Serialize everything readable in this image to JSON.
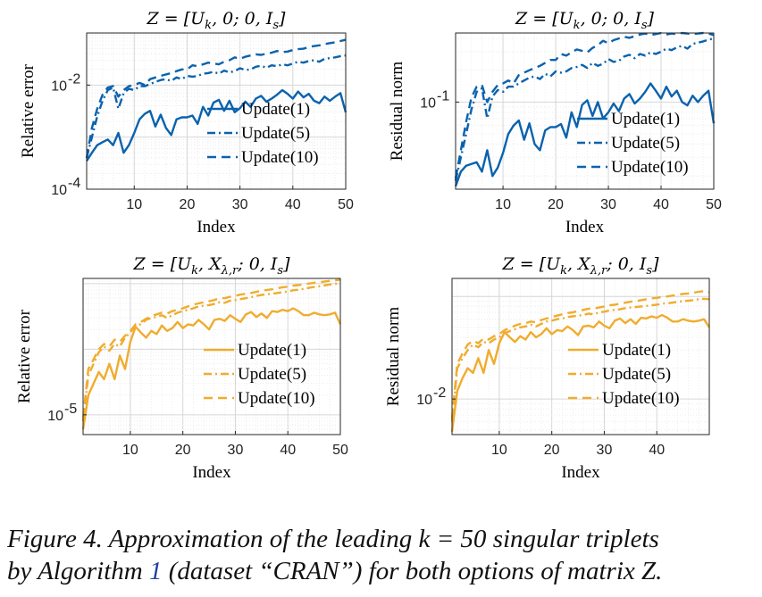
{
  "colors": {
    "blue": "#0a62ad",
    "orange": "#f0ac2e"
  },
  "caption": {
    "label": "Figure 4.",
    "line1_pre": "Approximation of the leading ",
    "k_equals": "k = 50",
    "line1_post": " singular triplets",
    "line2_pre": "by Algorithm ",
    "ref": "1",
    "line2_mid": " (dataset “CRAN”) for both options of matrix ",
    "matrix": "Z",
    "line2_end": "."
  },
  "chart_data": [
    {
      "type": "line",
      "title": "Z = [U_k, 0; 0, I_s]",
      "xlabel": "Index",
      "ylabel": "Relative error",
      "ylog": true,
      "xlim": [
        1,
        50
      ],
      "ylim": [
        0.0001,
        0.1
      ],
      "xticks": [
        10,
        20,
        30,
        40,
        50
      ],
      "yticks": [
        0.0001,
        0.01
      ],
      "ytick_labels": [
        {
          "base": "10",
          "exp": "-4"
        },
        {
          "base": "10",
          "exp": "-2"
        }
      ],
      "grid": true,
      "color": "blue",
      "legend_position": "bottom-right",
      "x": [
        1,
        2,
        3,
        4,
        5,
        6,
        7,
        8,
        9,
        10,
        11,
        12,
        13,
        14,
        15,
        16,
        17,
        18,
        19,
        20,
        21,
        22,
        23,
        24,
        25,
        26,
        27,
        28,
        29,
        30,
        31,
        32,
        33,
        34,
        35,
        36,
        37,
        38,
        39,
        40,
        41,
        42,
        43,
        44,
        45,
        46,
        47,
        48,
        49,
        50
      ],
      "series": [
        {
          "name": "Update(1)",
          "dash": "solid",
          "values": [
            0.00035,
            0.0005,
            0.0007,
            0.0008,
            0.0009,
            0.0007,
            0.0012,
            0.0005,
            0.0007,
            0.0012,
            0.0022,
            0.0028,
            0.0032,
            0.0016,
            0.0027,
            0.0015,
            0.0011,
            0.0022,
            0.0024,
            0.0024,
            0.0026,
            0.0018,
            0.0038,
            0.0026,
            0.0046,
            0.0052,
            0.0032,
            0.005,
            0.003,
            0.0036,
            0.0048,
            0.0038,
            0.0055,
            0.0062,
            0.0048,
            0.0055,
            0.0065,
            0.008,
            0.0068,
            0.0055,
            0.0075,
            0.0058,
            0.0068,
            0.005,
            0.0045,
            0.006,
            0.005,
            0.006,
            0.007,
            0.003
          ]
        },
        {
          "name": "Update(5)",
          "dash": "dashdot",
          "values": [
            0.0004,
            0.001,
            0.0025,
            0.005,
            0.008,
            0.009,
            0.0035,
            0.007,
            0.0085,
            0.008,
            0.0095,
            0.0095,
            0.0105,
            0.0115,
            0.0125,
            0.013,
            0.012,
            0.014,
            0.013,
            0.015,
            0.0145,
            0.015,
            0.0165,
            0.017,
            0.018,
            0.0165,
            0.019,
            0.0175,
            0.0185,
            0.021,
            0.0195,
            0.02,
            0.0225,
            0.0235,
            0.0215,
            0.024,
            0.023,
            0.025,
            0.024,
            0.026,
            0.028,
            0.027,
            0.029,
            0.03,
            0.028,
            0.032,
            0.033,
            0.034,
            0.036,
            0.037
          ]
        },
        {
          "name": "Update(10)",
          "dash": "dash",
          "values": [
            0.0004,
            0.0015,
            0.0035,
            0.0065,
            0.009,
            0.0095,
            0.006,
            0.008,
            0.0095,
            0.01,
            0.011,
            0.01,
            0.013,
            0.014,
            0.015,
            0.016,
            0.017,
            0.0185,
            0.02,
            0.02,
            0.024,
            0.023,
            0.025,
            0.027,
            0.026,
            0.025,
            0.028,
            0.03,
            0.034,
            0.032,
            0.035,
            0.037,
            0.039,
            0.038,
            0.04,
            0.042,
            0.045,
            0.043,
            0.044,
            0.047,
            0.049,
            0.05,
            0.054,
            0.056,
            0.058,
            0.061,
            0.064,
            0.066,
            0.07,
            0.074
          ]
        }
      ]
    },
    {
      "type": "line",
      "title": "Z = [U_k, 0; 0, I_s]",
      "xlabel": "Index",
      "ylabel": "Residual norm",
      "ylog": true,
      "xlim": [
        1,
        50
      ],
      "ylim": [
        0.015,
        0.45
      ],
      "xticks": [
        10,
        20,
        30,
        40,
        50
      ],
      "yticks": [
        0.1
      ],
      "ytick_labels": [
        {
          "base": "10",
          "exp": "-1"
        }
      ],
      "grid": true,
      "color": "blue",
      "legend_position": "bottom-right",
      "x": [
        1,
        2,
        3,
        4,
        5,
        6,
        7,
        8,
        9,
        10,
        11,
        12,
        13,
        14,
        15,
        16,
        17,
        18,
        19,
        20,
        21,
        22,
        23,
        24,
        25,
        26,
        27,
        28,
        29,
        30,
        31,
        32,
        33,
        34,
        35,
        36,
        37,
        38,
        39,
        40,
        41,
        42,
        43,
        44,
        45,
        46,
        47,
        48,
        49,
        50
      ],
      "series": [
        {
          "name": "Update(1)",
          "dash": "solid",
          "values": [
            0.016,
            0.022,
            0.025,
            0.026,
            0.027,
            0.022,
            0.035,
            0.02,
            0.024,
            0.033,
            0.05,
            0.06,
            0.067,
            0.044,
            0.063,
            0.04,
            0.035,
            0.054,
            0.058,
            0.058,
            0.062,
            0.046,
            0.08,
            0.058,
            0.094,
            0.104,
            0.074,
            0.1,
            0.07,
            0.08,
            0.097,
            0.082,
            0.108,
            0.119,
            0.097,
            0.108,
            0.125,
            0.15,
            0.128,
            0.108,
            0.14,
            0.113,
            0.128,
            0.1,
            0.093,
            0.115,
            0.1,
            0.115,
            0.128,
            0.063
          ]
        },
        {
          "name": "Update(5)",
          "dash": "dashdot",
          "values": [
            0.018,
            0.03,
            0.05,
            0.085,
            0.125,
            0.135,
            0.07,
            0.113,
            0.13,
            0.125,
            0.14,
            0.14,
            0.15,
            0.16,
            0.17,
            0.175,
            0.165,
            0.185,
            0.175,
            0.195,
            0.19,
            0.195,
            0.21,
            0.215,
            0.225,
            0.21,
            0.235,
            0.22,
            0.23,
            0.255,
            0.24,
            0.245,
            0.27,
            0.28,
            0.26,
            0.285,
            0.275,
            0.295,
            0.285,
            0.3,
            0.32,
            0.31,
            0.33,
            0.34,
            0.32,
            0.355,
            0.365,
            0.375,
            0.39,
            0.4
          ]
        },
        {
          "name": "Update(10)",
          "dash": "dash",
          "values": [
            0.019,
            0.035,
            0.065,
            0.11,
            0.14,
            0.145,
            0.1,
            0.125,
            0.145,
            0.15,
            0.16,
            0.15,
            0.18,
            0.19,
            0.2,
            0.21,
            0.22,
            0.235,
            0.25,
            0.25,
            0.285,
            0.275,
            0.295,
            0.315,
            0.305,
            0.295,
            0.325,
            0.345,
            0.38,
            0.36,
            0.385,
            0.4,
            0.415,
            0.405,
            0.42,
            0.435,
            0.445,
            0.43,
            0.44,
            0.45,
            0.435,
            0.445,
            0.44,
            0.45,
            0.445,
            0.44,
            0.445,
            0.45,
            0.445,
            0.43
          ]
        }
      ]
    },
    {
      "type": "line",
      "title": "Z = [U_k, X_{λ,r}; 0, I_s]",
      "xlabel": "Index",
      "ylabel": "Relative error",
      "ylog": true,
      "xlim": [
        1,
        50
      ],
      "ylim": [
        5e-06,
        0.0012
      ],
      "xticks": [
        10,
        20,
        30,
        40,
        50
      ],
      "yticks": [
        1e-05
      ],
      "ytick_labels": [
        {
          "base": "10",
          "exp": "-5"
        }
      ],
      "grid": true,
      "color": "orange",
      "legend_position": "bottom-right",
      "x": [
        1,
        2,
        3,
        4,
        5,
        6,
        7,
        8,
        9,
        10,
        11,
        12,
        13,
        14,
        15,
        16,
        17,
        18,
        19,
        20,
        21,
        22,
        23,
        24,
        25,
        26,
        27,
        28,
        29,
        30,
        31,
        32,
        33,
        34,
        35,
        36,
        37,
        38,
        39,
        40,
        41,
        42,
        43,
        44,
        45,
        46,
        47,
        48,
        49,
        50
      ],
      "series": [
        {
          "name": "Update(1)",
          "dash": "solid",
          "values": [
            6e-06,
            2e-05,
            3e-05,
            4.5e-05,
            3.5e-05,
            6e-05,
            3.5e-05,
            8e-05,
            5e-05,
            0.00013,
            0.00022,
            0.00018,
            0.00015,
            0.00019,
            0.00017,
            0.00023,
            0.00019,
            0.00021,
            0.00026,
            0.00021,
            0.00024,
            0.00023,
            0.00028,
            0.00024,
            0.0002,
            0.00028,
            0.00029,
            0.00027,
            0.00033,
            0.00029,
            0.00026,
            0.00034,
            0.00037,
            0.00031,
            0.00035,
            0.0003,
            0.00038,
            0.00037,
            0.0004,
            0.00038,
            0.00042,
            0.00038,
            0.00033,
            0.00033,
            0.00036,
            0.00034,
            0.00033,
            0.00034,
            0.00036,
            0.00024
          ]
        },
        {
          "name": "Update(5)",
          "dash": "dashdot",
          "values": [
            8e-06,
            4e-05,
            6e-05,
            9e-05,
            0.00011,
            9.5e-05,
            0.00012,
            0.00011,
            0.00015,
            0.00018,
            0.00023,
            0.00024,
            0.00028,
            0.0003,
            0.00031,
            0.00033,
            0.0003,
            0.00033,
            0.00036,
            0.00038,
            0.0004,
            0.00042,
            0.00045,
            0.00046,
            0.00047,
            0.00049,
            0.00052,
            0.00051,
            0.00055,
            0.00056,
            0.00058,
            0.0006,
            0.00062,
            0.00065,
            0.00067,
            0.00069,
            0.0007,
            0.00072,
            0.00074,
            0.00076,
            0.00079,
            0.00081,
            0.00083,
            0.00086,
            0.00089,
            0.00091,
            0.00094,
            0.00097,
            0.00099,
            0.00102
          ]
        },
        {
          "name": "Update(10)",
          "dash": "dash",
          "values": [
            9e-06,
            5e-05,
            7e-05,
            0.0001,
            0.00012,
            0.00011,
            0.00014,
            0.00013,
            0.00016,
            0.00019,
            0.00024,
            0.00026,
            0.00029,
            0.00032,
            0.00034,
            0.00036,
            0.00035,
            0.00038,
            0.0004,
            0.00042,
            0.00045,
            0.00048,
            0.0005,
            0.00052,
            0.00054,
            0.00056,
            0.0006,
            0.0006,
            0.00063,
            0.00065,
            0.00068,
            0.0007,
            0.00072,
            0.00075,
            0.00078,
            0.0008,
            0.00082,
            0.00085,
            0.00088,
            0.0009,
            0.00093,
            0.00095,
            0.00098,
            0.001,
            0.00103,
            0.00105,
            0.00108,
            0.0011,
            0.00112,
            0.00115
          ]
        }
      ]
    },
    {
      "type": "line",
      "title": "Z = [U_k, X_{λ,r}; 0, I_s]",
      "xlabel": "Index",
      "ylabel": "Residual norm",
      "ylog": true,
      "xlim": [
        1,
        50
      ],
      "ylim": [
        0.0045,
        0.15
      ],
      "xticks": [
        10,
        20,
        30,
        40
      ],
      "yticks": [
        0.01
      ],
      "ytick_labels": [
        {
          "base": "10",
          "exp": "-2"
        }
      ],
      "grid": true,
      "color": "orange",
      "legend_position": "bottom-right",
      "x": [
        1,
        2,
        3,
        4,
        5,
        6,
        7,
        8,
        9,
        10,
        11,
        12,
        13,
        14,
        15,
        16,
        17,
        18,
        19,
        20,
        21,
        22,
        23,
        24,
        25,
        26,
        27,
        28,
        29,
        30,
        31,
        32,
        33,
        34,
        35,
        36,
        37,
        38,
        39,
        40,
        41,
        42,
        43,
        44,
        45,
        46,
        47,
        48,
        49,
        50
      ],
      "series": [
        {
          "name": "Update(1)",
          "dash": "solid",
          "values": [
            0.0048,
            0.012,
            0.016,
            0.02,
            0.018,
            0.025,
            0.018,
            0.03,
            0.022,
            0.035,
            0.045,
            0.04,
            0.036,
            0.041,
            0.038,
            0.045,
            0.04,
            0.043,
            0.049,
            0.043,
            0.047,
            0.046,
            0.051,
            0.047,
            0.042,
            0.051,
            0.052,
            0.05,
            0.057,
            0.052,
            0.049,
            0.058,
            0.061,
            0.055,
            0.06,
            0.054,
            0.062,
            0.061,
            0.064,
            0.062,
            0.066,
            0.062,
            0.057,
            0.057,
            0.06,
            0.058,
            0.057,
            0.058,
            0.06,
            0.05
          ]
        },
        {
          "name": "Update(5)",
          "dash": "dashdot",
          "values": [
            0.006,
            0.02,
            0.025,
            0.03,
            0.034,
            0.032,
            0.036,
            0.035,
            0.038,
            0.04,
            0.044,
            0.046,
            0.048,
            0.05,
            0.051,
            0.053,
            0.051,
            0.054,
            0.057,
            0.058,
            0.06,
            0.061,
            0.063,
            0.064,
            0.065,
            0.066,
            0.068,
            0.067,
            0.07,
            0.071,
            0.073,
            0.074,
            0.075,
            0.077,
            0.078,
            0.079,
            0.08,
            0.081,
            0.082,
            0.083,
            0.085,
            0.086,
            0.087,
            0.089,
            0.09,
            0.091,
            0.092,
            0.094,
            0.095,
            0.094
          ]
        },
        {
          "name": "Update(10)",
          "dash": "dash",
          "values": [
            0.0065,
            0.022,
            0.028,
            0.034,
            0.037,
            0.035,
            0.039,
            0.038,
            0.041,
            0.043,
            0.047,
            0.049,
            0.052,
            0.054,
            0.055,
            0.057,
            0.056,
            0.059,
            0.061,
            0.063,
            0.065,
            0.067,
            0.069,
            0.07,
            0.072,
            0.074,
            0.076,
            0.076,
            0.078,
            0.08,
            0.082,
            0.083,
            0.085,
            0.087,
            0.089,
            0.09,
            0.092,
            0.094,
            0.096,
            0.097,
            0.099,
            0.1,
            0.102,
            0.104,
            0.106,
            0.107,
            0.109,
            0.111,
            0.113,
            0.11
          ]
        }
      ]
    }
  ]
}
